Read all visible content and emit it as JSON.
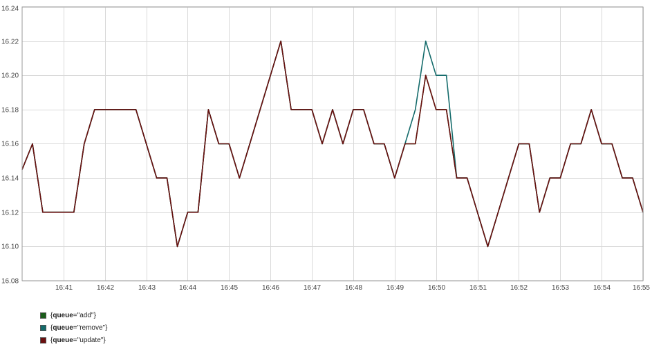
{
  "chart_data": {
    "type": "line",
    "ylim": [
      16.08,
      16.24
    ],
    "y_ticks": [
      "16.08",
      "16.10",
      "16.12",
      "16.14",
      "16.16",
      "16.18",
      "16.20",
      "16.22",
      "16.24"
    ],
    "x_range": [
      "16:40",
      "16:55"
    ],
    "x_ticks": [
      "16:41",
      "16:42",
      "16:43",
      "16:44",
      "16:45",
      "16:46",
      "16:47",
      "16:48",
      "16:49",
      "16:50",
      "16:51",
      "16:52",
      "16:53",
      "16:54",
      "16:55"
    ],
    "grid": true,
    "legend_position": "bottom-left",
    "x": [
      "16:40:00",
      "16:40:15",
      "16:40:30",
      "16:40:45",
      "16:41:00",
      "16:41:15",
      "16:41:30",
      "16:41:45",
      "16:42:00",
      "16:42:15",
      "16:42:30",
      "16:42:45",
      "16:43:00",
      "16:43:15",
      "16:43:30",
      "16:43:45",
      "16:44:00",
      "16:44:15",
      "16:44:30",
      "16:44:45",
      "16:45:00",
      "16:45:15",
      "16:45:30",
      "16:45:45",
      "16:46:00",
      "16:46:15",
      "16:46:30",
      "16:46:45",
      "16:47:00",
      "16:47:15",
      "16:47:30",
      "16:47:45",
      "16:48:00",
      "16:48:15",
      "16:48:30",
      "16:48:45",
      "16:49:00",
      "16:49:15",
      "16:49:30",
      "16:49:45",
      "16:50:00",
      "16:50:15",
      "16:50:30",
      "16:50:45",
      "16:51:00",
      "16:51:15",
      "16:51:30",
      "16:51:45",
      "16:52:00",
      "16:52:15",
      "16:52:30",
      "16:52:45",
      "16:53:00",
      "16:53:15",
      "16:53:30",
      "16:53:45",
      "16:54:00",
      "16:54:15",
      "16:54:30",
      "16:54:45",
      "16:55:00"
    ],
    "series": [
      {
        "name": "{queue=\"add\"}",
        "label_key": "queue",
        "label_value": "\"add\"",
        "color": "#1a5c1a",
        "values": [
          16.145,
          16.16,
          16.12,
          16.12,
          16.12,
          16.12,
          16.16,
          16.18,
          16.18,
          16.18,
          16.18,
          16.18,
          16.16,
          16.14,
          16.14,
          16.1,
          16.12,
          16.12,
          16.18,
          16.16,
          16.16,
          16.14,
          16.16,
          16.18,
          16.2,
          16.22,
          16.18,
          16.18,
          16.18,
          16.16,
          16.18,
          16.16,
          16.18,
          16.18,
          16.16,
          16.16,
          16.14,
          16.16,
          16.16,
          16.2,
          16.18,
          16.18,
          16.14,
          16.14,
          16.12,
          16.1,
          16.12,
          16.14,
          16.16,
          16.16,
          16.12,
          16.14,
          16.14,
          16.16,
          16.16,
          16.18,
          16.16,
          16.16,
          16.14,
          16.14,
          16.12
        ]
      },
      {
        "name": "{queue=\"remove\"}",
        "label_key": "queue",
        "label_value": "\"remove\"",
        "color": "#146b6b",
        "values": [
          16.145,
          16.16,
          16.12,
          16.12,
          16.12,
          16.12,
          16.16,
          16.18,
          16.18,
          16.18,
          16.18,
          16.18,
          16.16,
          16.14,
          16.14,
          16.1,
          16.12,
          16.12,
          16.18,
          16.16,
          16.16,
          16.14,
          16.16,
          16.18,
          16.2,
          16.22,
          16.18,
          16.18,
          16.18,
          16.16,
          16.18,
          16.16,
          16.18,
          16.18,
          16.16,
          16.16,
          16.14,
          16.16,
          16.18,
          16.22,
          16.2,
          16.2,
          16.14,
          16.14,
          16.12,
          16.1,
          16.12,
          16.14,
          16.16,
          16.16,
          16.12,
          16.14,
          16.14,
          16.16,
          16.16,
          16.18,
          16.16,
          16.16,
          16.14,
          16.14,
          16.12
        ]
      },
      {
        "name": "{queue=\"update\"}",
        "label_key": "queue",
        "label_value": "\"update\"",
        "color": "#6b0f0f",
        "values": [
          16.145,
          16.16,
          16.12,
          16.12,
          16.12,
          16.12,
          16.16,
          16.18,
          16.18,
          16.18,
          16.18,
          16.18,
          16.16,
          16.14,
          16.14,
          16.1,
          16.12,
          16.12,
          16.18,
          16.16,
          16.16,
          16.14,
          16.16,
          16.18,
          16.2,
          16.22,
          16.18,
          16.18,
          16.18,
          16.16,
          16.18,
          16.16,
          16.18,
          16.18,
          16.16,
          16.16,
          16.14,
          16.16,
          16.16,
          16.2,
          16.18,
          16.18,
          16.14,
          16.14,
          16.12,
          16.1,
          16.12,
          16.14,
          16.16,
          16.16,
          16.12,
          16.14,
          16.14,
          16.16,
          16.16,
          16.18,
          16.16,
          16.16,
          16.14,
          16.14,
          16.12
        ]
      }
    ]
  }
}
